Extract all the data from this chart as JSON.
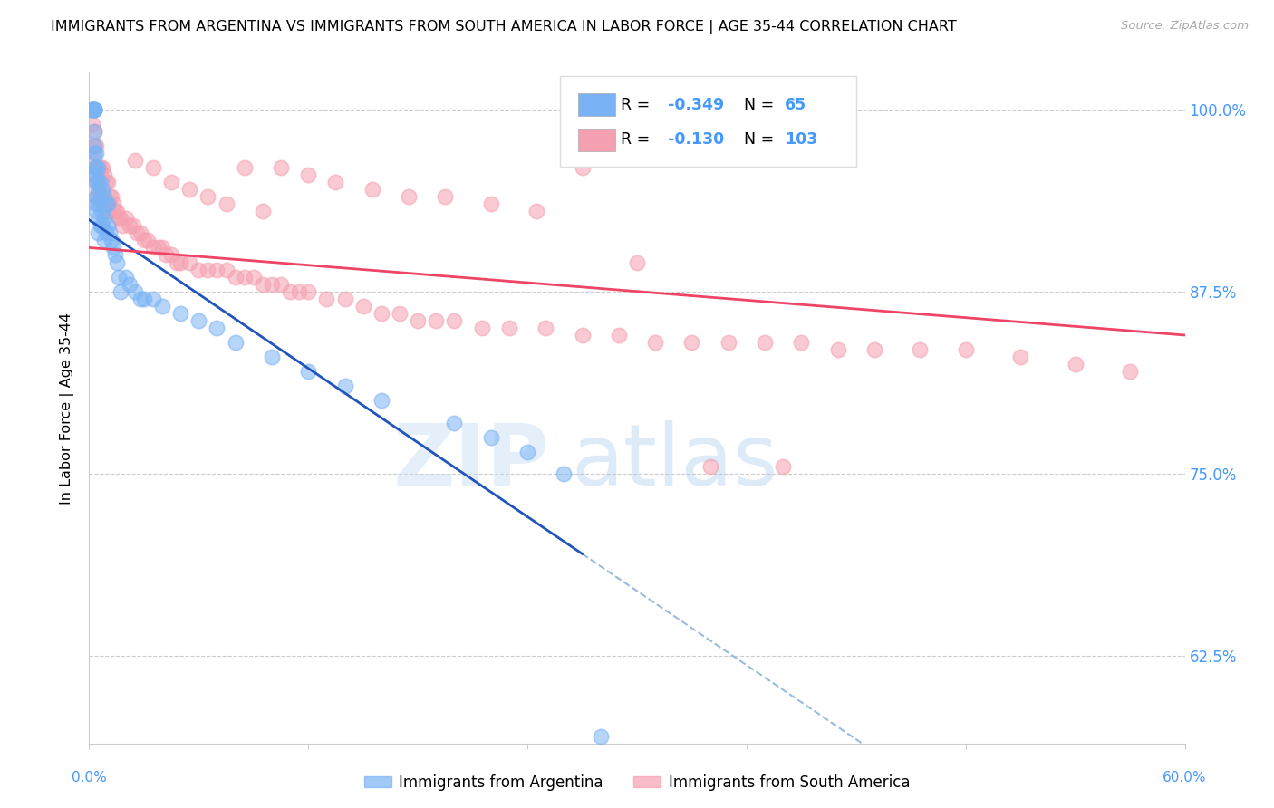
{
  "title": "IMMIGRANTS FROM ARGENTINA VS IMMIGRANTS FROM SOUTH AMERICA IN LABOR FORCE | AGE 35-44 CORRELATION CHART",
  "source": "Source: ZipAtlas.com",
  "ylabel": "In Labor Force | Age 35-44",
  "legend_r1": "R = -0.349",
  "legend_n1": "N =  65",
  "legend_r2": "R = -0.130",
  "legend_n2": "N = 103",
  "watermark_zip": "ZIP",
  "watermark_atlas": "atlas",
  "color_argentina": "#7ab3f5",
  "color_south_america": "#f5a0b0",
  "color_trendline_argentina": "#2255bb",
  "color_trendline_south_america": "#ee4466",
  "color_dashed": "#99bbdd",
  "color_ytick": "#4499ff",
  "xmin": 0.0,
  "xmax": 0.6,
  "ymin": 0.565,
  "ymax": 1.025,
  "ytick_vals": [
    1.0,
    0.875,
    0.75,
    0.625
  ],
  "ytick_labels": [
    "100.0%",
    "87.5%",
    "75.0%",
    "62.5%"
  ],
  "arg_trend_x0": 0.0,
  "arg_trend_y0": 0.924,
  "arg_trend_x1": 0.27,
  "arg_trend_y1": 0.695,
  "sa_trend_x0": 0.0,
  "sa_trend_y0": 0.905,
  "sa_trend_x1": 0.6,
  "sa_trend_y1": 0.845,
  "argentina_scatter_x": [
    0.002,
    0.002,
    0.002,
    0.003,
    0.003,
    0.003,
    0.003,
    0.003,
    0.003,
    0.003,
    0.003,
    0.003,
    0.004,
    0.004,
    0.004,
    0.004,
    0.004,
    0.004,
    0.004,
    0.005,
    0.005,
    0.005,
    0.005,
    0.005,
    0.005,
    0.006,
    0.006,
    0.006,
    0.007,
    0.007,
    0.007,
    0.008,
    0.008,
    0.008,
    0.009,
    0.009,
    0.01,
    0.01,
    0.011,
    0.012,
    0.013,
    0.014,
    0.015,
    0.016,
    0.017,
    0.02,
    0.022,
    0.025,
    0.028,
    0.03,
    0.035,
    0.04,
    0.05,
    0.06,
    0.07,
    0.08,
    0.1,
    0.12,
    0.14,
    0.16,
    0.2,
    0.22,
    0.24,
    0.26,
    0.28
  ],
  "argentina_scatter_y": [
    1.0,
    1.0,
    1.0,
    1.0,
    1.0,
    1.0,
    1.0,
    0.985,
    0.975,
    0.97,
    0.96,
    0.955,
    0.97,
    0.96,
    0.955,
    0.95,
    0.94,
    0.935,
    0.93,
    0.96,
    0.95,
    0.945,
    0.935,
    0.925,
    0.915,
    0.95,
    0.94,
    0.92,
    0.945,
    0.93,
    0.92,
    0.94,
    0.925,
    0.91,
    0.935,
    0.915,
    0.935,
    0.92,
    0.915,
    0.91,
    0.905,
    0.9,
    0.895,
    0.885,
    0.875,
    0.885,
    0.88,
    0.875,
    0.87,
    0.87,
    0.87,
    0.865,
    0.86,
    0.855,
    0.85,
    0.84,
    0.83,
    0.82,
    0.81,
    0.8,
    0.785,
    0.775,
    0.765,
    0.75,
    0.57
  ],
  "south_america_scatter_x": [
    0.002,
    0.002,
    0.003,
    0.003,
    0.003,
    0.004,
    0.004,
    0.004,
    0.004,
    0.005,
    0.005,
    0.005,
    0.006,
    0.006,
    0.007,
    0.007,
    0.008,
    0.008,
    0.009,
    0.009,
    0.01,
    0.01,
    0.011,
    0.012,
    0.013,
    0.014,
    0.015,
    0.016,
    0.017,
    0.018,
    0.02,
    0.022,
    0.024,
    0.026,
    0.028,
    0.03,
    0.032,
    0.035,
    0.038,
    0.04,
    0.042,
    0.045,
    0.048,
    0.05,
    0.055,
    0.06,
    0.065,
    0.07,
    0.075,
    0.08,
    0.085,
    0.09,
    0.095,
    0.1,
    0.105,
    0.11,
    0.115,
    0.12,
    0.13,
    0.14,
    0.15,
    0.16,
    0.17,
    0.18,
    0.19,
    0.2,
    0.215,
    0.23,
    0.25,
    0.27,
    0.29,
    0.31,
    0.33,
    0.35,
    0.37,
    0.39,
    0.41,
    0.43,
    0.455,
    0.48,
    0.51,
    0.54,
    0.57,
    0.025,
    0.035,
    0.045,
    0.055,
    0.065,
    0.075,
    0.085,
    0.095,
    0.105,
    0.12,
    0.135,
    0.155,
    0.175,
    0.195,
    0.22,
    0.245,
    0.27,
    0.3,
    0.34,
    0.38
  ],
  "south_america_scatter_y": [
    1.0,
    0.99,
    0.985,
    0.975,
    0.965,
    0.975,
    0.96,
    0.95,
    0.94,
    0.96,
    0.95,
    0.94,
    0.96,
    0.94,
    0.96,
    0.94,
    0.955,
    0.935,
    0.95,
    0.93,
    0.95,
    0.93,
    0.94,
    0.94,
    0.935,
    0.93,
    0.93,
    0.925,
    0.925,
    0.92,
    0.925,
    0.92,
    0.92,
    0.915,
    0.915,
    0.91,
    0.91,
    0.905,
    0.905,
    0.905,
    0.9,
    0.9,
    0.895,
    0.895,
    0.895,
    0.89,
    0.89,
    0.89,
    0.89,
    0.885,
    0.885,
    0.885,
    0.88,
    0.88,
    0.88,
    0.875,
    0.875,
    0.875,
    0.87,
    0.87,
    0.865,
    0.86,
    0.86,
    0.855,
    0.855,
    0.855,
    0.85,
    0.85,
    0.85,
    0.845,
    0.845,
    0.84,
    0.84,
    0.84,
    0.84,
    0.84,
    0.835,
    0.835,
    0.835,
    0.835,
    0.83,
    0.825,
    0.82,
    0.965,
    0.96,
    0.95,
    0.945,
    0.94,
    0.935,
    0.96,
    0.93,
    0.96,
    0.955,
    0.95,
    0.945,
    0.94,
    0.94,
    0.935,
    0.93,
    0.96,
    0.895,
    0.755,
    0.755
  ]
}
